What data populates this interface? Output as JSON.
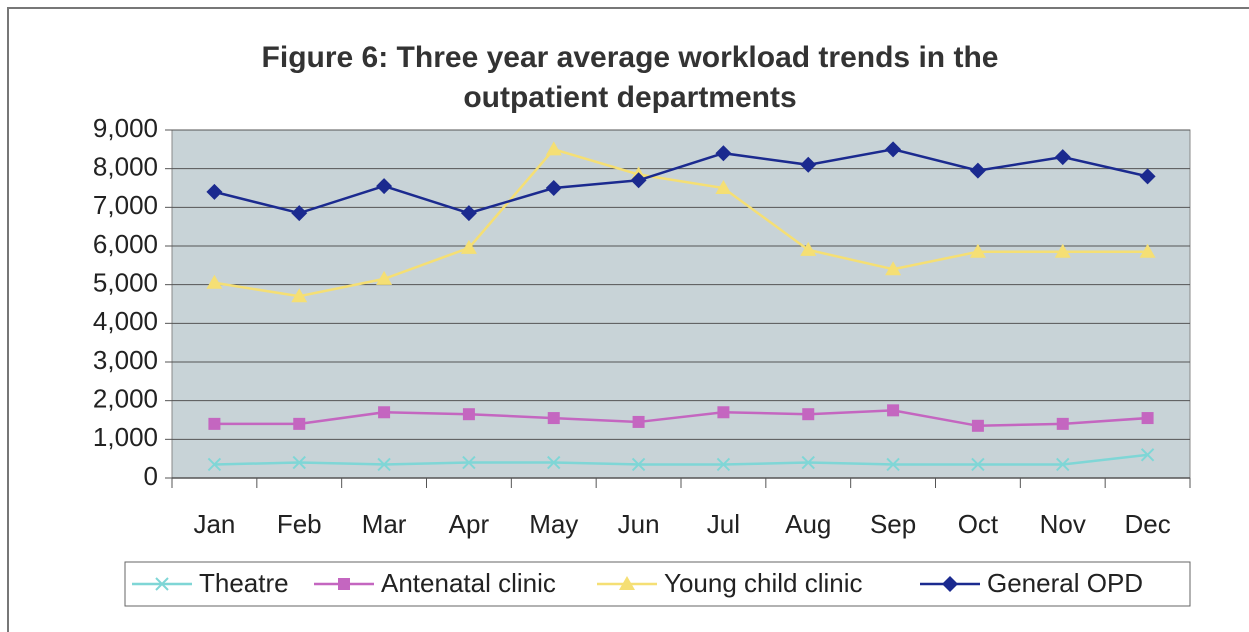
{
  "chart_data": {
    "type": "line",
    "title": "Figure 6: Three year average workload trends in the outpatient departments",
    "categories": [
      "Jan",
      "Feb",
      "Mar",
      "Apr",
      "May",
      "Jun",
      "Jul",
      "Aug",
      "Sep",
      "Oct",
      "Nov",
      "Dec"
    ],
    "series": [
      {
        "name": "Theatre",
        "color": "#7fd6d6",
        "marker": "x",
        "values": [
          350,
          400,
          350,
          400,
          400,
          350,
          350,
          400,
          350,
          350,
          350,
          600
        ]
      },
      {
        "name": "Antenatal clinic",
        "color": "#c466c0",
        "marker": "square",
        "values": [
          1400,
          1400,
          1700,
          1650,
          1550,
          1450,
          1700,
          1650,
          1750,
          1350,
          1400,
          1550
        ]
      },
      {
        "name": "Young child clinic",
        "color": "#f5df74",
        "marker": "triangle",
        "values": [
          5050,
          4700,
          5150,
          5950,
          8500,
          7850,
          7500,
          5900,
          5400,
          5850,
          5850,
          5850
        ]
      },
      {
        "name": "General OPD",
        "color": "#1b2a8f",
        "marker": "diamond",
        "values": [
          7400,
          6850,
          7550,
          6850,
          7500,
          7700,
          8400,
          8100,
          8500,
          7950,
          8300,
          7800
        ]
      }
    ],
    "ylim": [
      0,
      9000
    ],
    "yticks": [
      0,
      {
        "value": 1000,
        "label": "1,000"
      },
      {
        "value": 2000,
        "label": "2,000"
      },
      {
        "value": 3000,
        "label": "3,000"
      },
      {
        "value": 4000,
        "label": "4,000"
      },
      {
        "value": 5000,
        "label": "5,000"
      },
      {
        "value": 6000,
        "label": "6,000"
      },
      {
        "value": 7000,
        "label": "7,000"
      },
      {
        "value": 8000,
        "label": "8,000"
      },
      {
        "value": 9000,
        "label": "9,000"
      }
    ],
    "grid": true,
    "legend": "bottom",
    "plot_background": "#c8d3d7"
  }
}
